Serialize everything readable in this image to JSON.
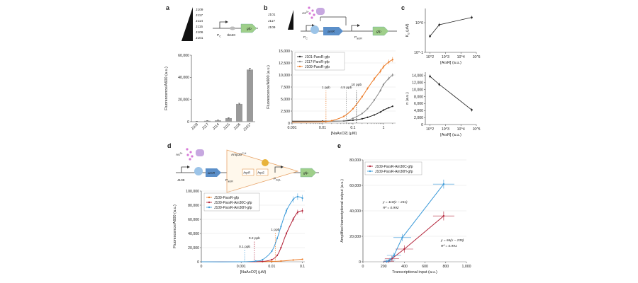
{
  "panels": {
    "a": "a",
    "b": "b",
    "c": "c",
    "d": "d",
    "e": "e"
  },
  "colors": {
    "black": "#222222",
    "grey": "#8a8a8a",
    "orange": "#ec7a25",
    "red": "#b3243a",
    "blue": "#3b9ad9",
    "green": "#9fcf8a",
    "bar": "#9a9a9a"
  },
  "panel_a": {
    "promoter_ladder": [
      "J109",
      "J117",
      "J114",
      "J115",
      "J106",
      "J101"
    ],
    "construct": {
      "promoter": "P",
      "promoter_sub": "C",
      "rbs": "rbs30",
      "gene": "gfp"
    }
  },
  "panel_b": {
    "ladder": [
      "J101",
      "J117",
      "J109"
    ],
    "inducer": "As",
    "inducer_sup": "3+",
    "labels": {
      "pc": "P",
      "pc_sub": "C",
      "gene": "arsR",
      "pars": "P",
      "pars_sub": "arsR",
      "out": "gfp"
    }
  },
  "panel_c": {
    "top": {
      "ylabel": "K",
      "ylabel_sub": "d",
      "ylabel_unit": "(μM)",
      "xlabel": "[ArsR] (a.u.)"
    },
    "bottom": {
      "ylabel": "n (a.u.)",
      "xlabel": "[ArsR] (a.u.)"
    }
  },
  "panel_d": {
    "inducer": "As",
    "inducer_sup": "3+",
    "labels": {
      "j109": "J109",
      "arsr": "arsR",
      "pars": "P",
      "pars_sub": "arsR",
      "amp": "Amp30",
      "amp_sup": "C,H",
      "hrpR": "hrpR",
      "hrpS": "hrpS",
      "phrpl": "P",
      "phrpl_sub": "hrpL",
      "gfp": "gfp"
    }
  },
  "panel_e": {},
  "chart_data": [
    {
      "id": "a",
      "type": "bar",
      "categories": [
        "J109",
        "J117",
        "J114",
        "J115",
        "J106",
        "J101*"
      ],
      "values": [
        200,
        800,
        1200,
        3200,
        16000,
        47000
      ],
      "errors": [
        100,
        150,
        200,
        400,
        600,
        1200
      ],
      "ylabel": "Fluorescence/A600 (a.u.)",
      "ylim": [
        0,
        60000
      ],
      "yticks": [
        "0",
        "20,000",
        "40,000",
        "60,000"
      ]
    },
    {
      "id": "b",
      "type": "line",
      "xscale": "log",
      "xlim": [
        0.001,
        2.5
      ],
      "ylim": [
        0,
        15000
      ],
      "xticks": [
        "0.001",
        "0.01",
        "0.1",
        "1"
      ],
      "yticks": [
        "0",
        "2,500",
        "5,000",
        "7,500",
        "10,000",
        "12,500",
        "15,000"
      ],
      "xlabel": "[NaAsO2] (μM)",
      "ylabel": "Fluorescence/A600 (a.u.)",
      "legend": [
        "J101-ParsR-gfp",
        "J117-ParsR-gfp",
        "J109-ParsR-gfp"
      ],
      "series": [
        {
          "name": "J101-ParsR-gfp",
          "color": "#222222",
          "x": [
            0.001,
            0.01,
            0.05,
            0.1,
            0.2,
            0.3,
            0.5,
            0.8,
            1.0,
            1.5,
            2.0
          ],
          "y": [
            400,
            400,
            450,
            600,
            900,
            1200,
            1700,
            2300,
            2700,
            3200,
            3500
          ]
        },
        {
          "name": "J117-ParsR-gfp",
          "color": "#8a8a8a",
          "x": [
            0.001,
            0.01,
            0.05,
            0.1,
            0.2,
            0.3,
            0.5,
            0.8,
            1.0,
            1.5,
            2.0
          ],
          "y": [
            300,
            300,
            500,
            1000,
            2000,
            3000,
            4800,
            6800,
            8000,
            9300,
            10000
          ]
        },
        {
          "name": "J109-ParsR-gfp",
          "color": "#ec7a25",
          "x": [
            0.001,
            0.01,
            0.02,
            0.05,
            0.1,
            0.2,
            0.3,
            0.5,
            0.8,
            1.0,
            1.5,
            2.0
          ],
          "y": [
            200,
            300,
            500,
            1400,
            3000,
            5500,
            7200,
            9200,
            10800,
            11700,
            12700,
            13200
          ]
        }
      ],
      "annotations": [
        {
          "text": "1 ppb",
          "x": 0.013,
          "color": "#ec7a25"
        },
        {
          "text": "4.5 ppb",
          "x": 0.06,
          "color": "#8a8a8a"
        },
        {
          "text": "10 ppb",
          "x": 0.13,
          "color": "#222222"
        }
      ]
    },
    {
      "id": "c-top",
      "type": "line",
      "xscale": "log",
      "yscale": "log",
      "x": [
        100,
        400,
        50000
      ],
      "y": [
        0.35,
        0.85,
        1.5
      ],
      "xlim": [
        50,
        100000
      ],
      "ylim": [
        0.1,
        3
      ],
      "xticks": [
        "10^2",
        "10^3",
        "10^4",
        "10^5"
      ],
      "yticks": [
        "10^-1",
        "10^0"
      ],
      "ylabel": "Kd (μM)",
      "xlabel": "[ArsR] (a.u.)"
    },
    {
      "id": "c-bottom",
      "type": "line",
      "xscale": "log",
      "x": [
        100,
        400,
        50000
      ],
      "y": [
        13800,
        11500,
        4200
      ],
      "xlim": [
        50,
        100000
      ],
      "ylim": [
        0,
        15000
      ],
      "xticks": [
        "10^2",
        "10^3",
        "10^4",
        "10^5"
      ],
      "yticks": [
        "0",
        "2,000",
        "4,000",
        "6,000",
        "8,000",
        "10,000",
        "12,000",
        "14,000"
      ],
      "ylabel": "n (a.u.)",
      "xlabel": "[ArsR] (a.u.)"
    },
    {
      "id": "d",
      "type": "line",
      "xscale": "log",
      "xlim": [
        5e-05,
        0.12
      ],
      "ylim": [
        0,
        100000
      ],
      "xticks": [
        "0",
        "0.001",
        "0.01",
        "0.1"
      ],
      "yticks": [
        "0",
        "20,000",
        "40,000",
        "60,000",
        "80,000",
        "100,000"
      ],
      "xlabel": "[NaAsO2] (μM)",
      "ylabel": "Fluorescence/A600 (a.u.)",
      "legend": [
        "J109-ParsR-gfp",
        "J109-ParsR-Am30C-gfp",
        "J109-ParsR-Am30H-gfp"
      ],
      "series": [
        {
          "name": "J109-ParsR-gfp",
          "color": "#ec7a25",
          "x": [
            5e-05,
            0.001,
            0.005,
            0.01,
            0.02,
            0.05,
            0.1
          ],
          "y": [
            0,
            0,
            200,
            500,
            1000,
            2500,
            3500
          ]
        },
        {
          "name": "J109-ParsR-Am30C-gfp",
          "color": "#b3243a",
          "x": [
            5e-05,
            0.001,
            0.005,
            0.01,
            0.015,
            0.02,
            0.03,
            0.05,
            0.07,
            0.1
          ],
          "y": [
            0,
            0,
            500,
            3000,
            9000,
            20000,
            40000,
            60000,
            70000,
            72000
          ]
        },
        {
          "name": "J109-ParsR-Am30H-gfp",
          "color": "#3b9ad9",
          "x": [
            5e-05,
            0.001,
            0.003,
            0.005,
            0.01,
            0.015,
            0.02,
            0.03,
            0.05,
            0.07,
            0.1
          ],
          "y": [
            0,
            0,
            1000,
            3000,
            15000,
            33000,
            50000,
            72000,
            88000,
            92000,
            90000
          ]
        }
      ],
      "annotations": [
        {
          "text": "0.1 ppb",
          "x": 0.0013,
          "color": "#3b9ad9"
        },
        {
          "text": "0.2 ppb",
          "x": 0.0027,
          "color": "#b3243a"
        },
        {
          "text": "1 ppb",
          "x": 0.013,
          "color": "#ec7a25"
        }
      ]
    },
    {
      "id": "e",
      "type": "scatter",
      "xlim": [
        0,
        1000
      ],
      "ylim": [
        0,
        80000
      ],
      "xticks": [
        "0",
        "200",
        "400",
        "600",
        "800",
        "1,000"
      ],
      "yticks": [
        "0",
        "20,000",
        "40,000",
        "60,000",
        "80,000"
      ],
      "xlabel": "Transcriptional input (a.u.)",
      "ylabel": "Amplified transcriptional output (a.u.)",
      "legend": [
        "J109-ParsR-Am30C-gfp",
        "J109-ParsR-Am30H-gfp"
      ],
      "series": [
        {
          "name": "J109-ParsR-Am30C-gfp",
          "color": "#b3243a",
          "x": [
            230,
            250,
            280,
            400,
            780
          ],
          "y": [
            100,
            500,
            2500,
            10000,
            36000
          ]
        },
        {
          "name": "J109-ParsR-Am30H-gfp",
          "color": "#3b9ad9",
          "x": [
            230,
            260,
            300,
            380,
            780
          ],
          "y": [
            200,
            1500,
            5000,
            19000,
            61000
          ]
        }
      ],
      "fits": [
        {
          "series": "J109-ParsR-Am30C-gfp",
          "equation": "y = 66(x − 239)",
          "r2": "R² = 0.991"
        },
        {
          "series": "J109-ParsR-Am30H-gfp",
          "equation": "y = 110(x − 231)",
          "r2": "R² = 0.992"
        }
      ]
    }
  ]
}
